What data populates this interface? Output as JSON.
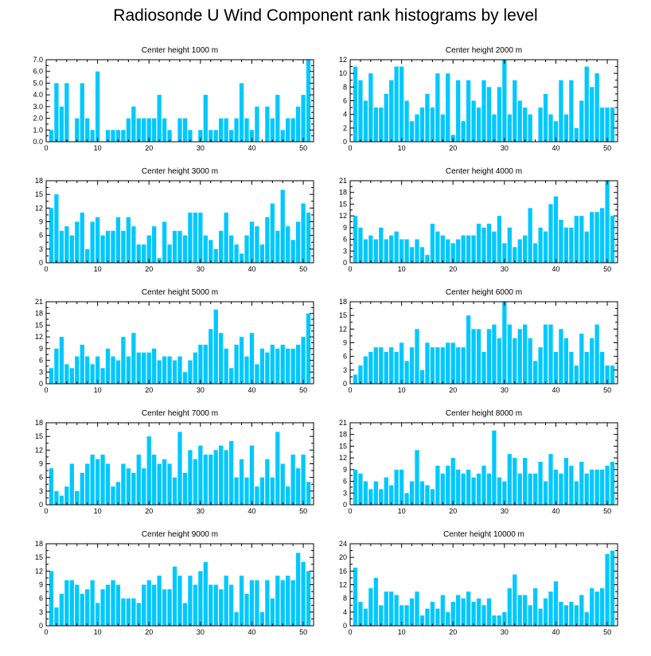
{
  "title": "Radiosonde U Wind Component rank histograms by level",
  "colors": {
    "bar": "#00c8ff",
    "axis": "#000000"
  },
  "chart_data": [
    {
      "type": "bar",
      "title": "Center height 1000 m",
      "xlabel": "",
      "ylabel": "",
      "xlim": [
        0,
        52
      ],
      "xticks": [
        0,
        10,
        20,
        30,
        40,
        50
      ],
      "ylim": [
        0,
        7
      ],
      "yticks": [
        0,
        1,
        2,
        3,
        4,
        5,
        6,
        7
      ],
      "ytick_labels": [
        "0.0",
        "1.0",
        "2.0",
        "3.0",
        "4.0",
        "5.0",
        "6.0",
        "7.0"
      ],
      "x": [
        1,
        2,
        3,
        4,
        5,
        6,
        7,
        8,
        9,
        10,
        11,
        12,
        13,
        14,
        15,
        16,
        17,
        18,
        19,
        20,
        21,
        22,
        23,
        24,
        25,
        26,
        27,
        28,
        29,
        30,
        31,
        32,
        33,
        34,
        35,
        36,
        37,
        38,
        39,
        40,
        41,
        42,
        43,
        44,
        45,
        46,
        47,
        48,
        49,
        50,
        51
      ],
      "values": [
        1,
        5,
        3,
        5,
        0,
        2,
        5,
        2,
        1,
        6,
        0,
        1,
        1,
        1,
        1,
        2,
        3,
        2,
        2,
        2,
        2,
        4,
        2,
        1,
        0,
        2,
        2,
        1,
        0,
        1,
        4,
        1,
        1,
        2,
        2,
        1,
        2,
        5,
        2,
        1,
        3,
        0,
        3,
        2,
        4,
        1,
        2,
        2,
        3,
        4,
        7
      ]
    },
    {
      "type": "bar",
      "title": "Center height 2000 m",
      "xlabel": "",
      "ylabel": "",
      "xlim": [
        0,
        52
      ],
      "xticks": [
        0,
        10,
        20,
        30,
        40,
        50
      ],
      "ylim": [
        0,
        12
      ],
      "yticks": [
        0,
        2,
        4,
        6,
        8,
        10,
        12
      ],
      "ytick_labels": [
        "0",
        "2",
        "4",
        "6",
        "8",
        "10",
        "12"
      ],
      "x": [
        1,
        2,
        3,
        4,
        5,
        6,
        7,
        8,
        9,
        10,
        11,
        12,
        13,
        14,
        15,
        16,
        17,
        18,
        19,
        20,
        21,
        22,
        23,
        24,
        25,
        26,
        27,
        28,
        29,
        30,
        31,
        32,
        33,
        34,
        35,
        36,
        37,
        38,
        39,
        40,
        41,
        42,
        43,
        44,
        45,
        46,
        47,
        48,
        49,
        50,
        51
      ],
      "values": [
        11,
        9,
        6,
        10,
        5,
        5,
        7,
        9,
        11,
        11,
        6,
        3,
        4,
        5,
        7,
        5,
        10,
        4,
        10,
        1,
        9,
        3,
        9,
        6,
        5,
        9,
        8,
        4,
        8,
        12,
        4,
        9,
        6,
        5,
        4,
        0,
        5,
        7,
        4,
        3,
        9,
        4,
        9,
        2,
        6,
        11,
        8,
        10,
        5,
        5,
        5
      ]
    },
    {
      "type": "bar",
      "title": "Center height 3000 m",
      "xlabel": "",
      "ylabel": "",
      "xlim": [
        0,
        52
      ],
      "xticks": [
        0,
        10,
        20,
        30,
        40,
        50
      ],
      "ylim": [
        0,
        18
      ],
      "yticks": [
        0,
        3,
        6,
        9,
        12,
        15,
        18
      ],
      "ytick_labels": [
        "0",
        "3",
        "6",
        "9",
        "12",
        "15",
        "18"
      ],
      "x": [
        1,
        2,
        3,
        4,
        5,
        6,
        7,
        8,
        9,
        10,
        11,
        12,
        13,
        14,
        15,
        16,
        17,
        18,
        19,
        20,
        21,
        22,
        23,
        24,
        25,
        26,
        27,
        28,
        29,
        30,
        31,
        32,
        33,
        34,
        35,
        36,
        37,
        38,
        39,
        40,
        41,
        42,
        43,
        44,
        45,
        46,
        47,
        48,
        49,
        50,
        51
      ],
      "values": [
        12,
        15,
        7,
        8,
        6,
        9,
        11,
        3,
        9,
        10,
        6,
        7,
        7,
        10,
        7,
        10,
        8,
        4,
        4,
        6,
        8,
        1,
        9,
        4,
        7,
        7,
        6,
        11,
        11,
        11,
        6,
        5,
        3,
        7,
        11,
        6,
        4,
        2,
        6,
        9,
        8,
        4,
        10,
        13,
        7,
        16,
        8,
        5,
        9,
        13,
        11
      ]
    },
    {
      "type": "bar",
      "title": "Center height 4000 m",
      "xlabel": "",
      "ylabel": "",
      "xlim": [
        0,
        52
      ],
      "xticks": [
        0,
        10,
        20,
        30,
        40,
        50
      ],
      "ylim": [
        0,
        21
      ],
      "yticks": [
        0,
        3,
        6,
        9,
        12,
        15,
        18,
        21
      ],
      "ytick_labels": [
        "0",
        "3",
        "6",
        "9",
        "12",
        "15",
        "18",
        "21"
      ],
      "x": [
        1,
        2,
        3,
        4,
        5,
        6,
        7,
        8,
        9,
        10,
        11,
        12,
        13,
        14,
        15,
        16,
        17,
        18,
        19,
        20,
        21,
        22,
        23,
        24,
        25,
        26,
        27,
        28,
        29,
        30,
        31,
        32,
        33,
        34,
        35,
        36,
        37,
        38,
        39,
        40,
        41,
        42,
        43,
        44,
        45,
        46,
        47,
        48,
        49,
        50,
        51
      ],
      "values": [
        12,
        9,
        6,
        7,
        6,
        9,
        6,
        7,
        8,
        6,
        6,
        4,
        6,
        4,
        2,
        10,
        8,
        7,
        6,
        5,
        6,
        7,
        7,
        7,
        10,
        9,
        10,
        8,
        12,
        5,
        9,
        4,
        6,
        7,
        14,
        5,
        9,
        8,
        15,
        17,
        11,
        9,
        9,
        12,
        12,
        8,
        13,
        13,
        14,
        21,
        12
      ]
    },
    {
      "type": "bar",
      "title": "Center height 5000 m",
      "xlabel": "",
      "ylabel": "",
      "xlim": [
        0,
        52
      ],
      "xticks": [
        0,
        10,
        20,
        30,
        40,
        50
      ],
      "ylim": [
        0,
        21
      ],
      "yticks": [
        0,
        3,
        6,
        9,
        12,
        15,
        18,
        21
      ],
      "ytick_labels": [
        "0",
        "3",
        "6",
        "9",
        "12",
        "15",
        "18",
        "21"
      ],
      "x": [
        1,
        2,
        3,
        4,
        5,
        6,
        7,
        8,
        9,
        10,
        11,
        12,
        13,
        14,
        15,
        16,
        17,
        18,
        19,
        20,
        21,
        22,
        23,
        24,
        25,
        26,
        27,
        28,
        29,
        30,
        31,
        32,
        33,
        34,
        35,
        36,
        37,
        38,
        39,
        40,
        41,
        42,
        43,
        44,
        45,
        46,
        47,
        48,
        49,
        50,
        51
      ],
      "values": [
        4,
        9,
        12,
        5,
        4,
        7,
        10,
        7,
        5,
        7,
        4,
        9,
        7,
        6,
        12,
        7,
        13,
        8,
        8,
        8,
        9,
        6,
        7,
        7,
        6,
        7,
        3,
        6,
        8,
        10,
        10,
        14,
        19,
        13,
        9,
        4,
        10,
        12,
        7,
        13,
        5,
        9,
        8,
        10,
        9,
        10,
        9,
        9,
        10,
        12,
        18
      ]
    },
    {
      "type": "bar",
      "title": "Center height 6000 m",
      "xlabel": "",
      "ylabel": "",
      "xlim": [
        0,
        52
      ],
      "xticks": [
        0,
        10,
        20,
        30,
        40,
        50
      ],
      "ylim": [
        0,
        18
      ],
      "yticks": [
        0,
        3,
        6,
        9,
        12,
        15,
        18
      ],
      "ytick_labels": [
        "0",
        "3",
        "6",
        "9",
        "12",
        "15",
        "18"
      ],
      "x": [
        1,
        2,
        3,
        4,
        5,
        6,
        7,
        8,
        9,
        10,
        11,
        12,
        13,
        14,
        15,
        16,
        17,
        18,
        19,
        20,
        21,
        22,
        23,
        24,
        25,
        26,
        27,
        28,
        29,
        30,
        31,
        32,
        33,
        34,
        35,
        36,
        37,
        38,
        39,
        40,
        41,
        42,
        43,
        44,
        45,
        46,
        47,
        48,
        49,
        50,
        51
      ],
      "values": [
        2,
        4,
        6,
        7,
        8,
        8,
        7,
        8,
        7,
        9,
        5,
        8,
        12,
        3,
        9,
        8,
        8,
        8,
        9,
        9,
        8,
        8,
        15,
        12,
        12,
        7,
        12,
        13,
        10,
        18,
        13,
        10,
        12,
        13,
        10,
        5,
        8,
        13,
        13,
        7,
        12,
        10,
        7,
        4,
        11,
        7,
        10,
        13,
        7,
        4,
        4
      ]
    },
    {
      "type": "bar",
      "title": "Center height 7000 m",
      "xlabel": "",
      "ylabel": "",
      "xlim": [
        0,
        52
      ],
      "xticks": [
        0,
        10,
        20,
        30,
        40,
        50
      ],
      "ylim": [
        0,
        18
      ],
      "yticks": [
        0,
        3,
        6,
        9,
        12,
        15,
        18
      ],
      "ytick_labels": [
        "0",
        "3",
        "6",
        "9",
        "12",
        "15",
        "18"
      ],
      "x": [
        1,
        2,
        3,
        4,
        5,
        6,
        7,
        8,
        9,
        10,
        11,
        12,
        13,
        14,
        15,
        16,
        17,
        18,
        19,
        20,
        21,
        22,
        23,
        24,
        25,
        26,
        27,
        28,
        29,
        30,
        31,
        32,
        33,
        34,
        35,
        36,
        37,
        38,
        39,
        40,
        41,
        42,
        43,
        44,
        45,
        46,
        47,
        48,
        49,
        50,
        51
      ],
      "values": [
        8,
        3,
        2,
        4,
        9,
        3,
        7,
        9,
        11,
        10,
        11,
        9,
        4,
        5,
        9,
        8,
        7,
        11,
        8,
        15,
        11,
        9,
        10,
        9,
        6,
        16,
        7,
        12,
        10,
        13,
        11,
        11,
        12,
        13,
        12,
        14,
        6,
        10,
        6,
        13,
        4,
        6,
        10,
        6,
        16,
        9,
        4,
        11,
        8,
        11,
        5
      ]
    },
    {
      "type": "bar",
      "title": "Center height 8000 m",
      "xlabel": "",
      "ylabel": "",
      "xlim": [
        0,
        52
      ],
      "xticks": [
        0,
        10,
        20,
        30,
        40,
        50
      ],
      "ylim": [
        0,
        21
      ],
      "yticks": [
        0,
        3,
        6,
        9,
        12,
        15,
        18,
        21
      ],
      "ytick_labels": [
        "0",
        "3",
        "6",
        "9",
        "12",
        "15",
        "18",
        "21"
      ],
      "x": [
        1,
        2,
        3,
        4,
        5,
        6,
        7,
        8,
        9,
        10,
        11,
        12,
        13,
        14,
        15,
        16,
        17,
        18,
        19,
        20,
        21,
        22,
        23,
        24,
        25,
        26,
        27,
        28,
        29,
        30,
        31,
        32,
        33,
        34,
        35,
        36,
        37,
        38,
        39,
        40,
        41,
        42,
        43,
        44,
        45,
        46,
        47,
        48,
        49,
        50,
        51
      ],
      "values": [
        9,
        8,
        6,
        4,
        6,
        4,
        7,
        5,
        9,
        9,
        3,
        6,
        14,
        6,
        5,
        4,
        10,
        8,
        10,
        12,
        9,
        8,
        9,
        7,
        8,
        10,
        8,
        19,
        7,
        6,
        13,
        12,
        8,
        12,
        8,
        8,
        11,
        6,
        13,
        9,
        8,
        12,
        10,
        6,
        11,
        8,
        9,
        9,
        9,
        10,
        11
      ]
    },
    {
      "type": "bar",
      "title": "Center height 9000 m",
      "xlabel": "",
      "ylabel": "",
      "xlim": [
        0,
        52
      ],
      "xticks": [
        0,
        10,
        20,
        30,
        40,
        50
      ],
      "ylim": [
        0,
        18
      ],
      "yticks": [
        0,
        3,
        6,
        9,
        12,
        15,
        18
      ],
      "ytick_labels": [
        "0",
        "3",
        "6",
        "9",
        "12",
        "15",
        "18"
      ],
      "x": [
        1,
        2,
        3,
        4,
        5,
        6,
        7,
        8,
        9,
        10,
        11,
        12,
        13,
        14,
        15,
        16,
        17,
        18,
        19,
        20,
        21,
        22,
        23,
        24,
        25,
        26,
        27,
        28,
        29,
        30,
        31,
        32,
        33,
        34,
        35,
        36,
        37,
        38,
        39,
        40,
        41,
        42,
        43,
        44,
        45,
        46,
        47,
        48,
        49,
        50,
        51
      ],
      "values": [
        12,
        4,
        7,
        10,
        10,
        9,
        7,
        8,
        10,
        5,
        8,
        9,
        10,
        9,
        6,
        6,
        6,
        5,
        9,
        10,
        9,
        11,
        8,
        8,
        13,
        11,
        5,
        11,
        9,
        12,
        14,
        9,
        9,
        8,
        11,
        9,
        3,
        11,
        7,
        10,
        10,
        3,
        10,
        6,
        11,
        10,
        11,
        10,
        16,
        14,
        12
      ]
    },
    {
      "type": "bar",
      "title": "Center height 10000 m",
      "xlabel": "",
      "ylabel": "",
      "xlim": [
        0,
        52
      ],
      "xticks": [
        0,
        10,
        20,
        30,
        40,
        50
      ],
      "ylim": [
        0,
        24
      ],
      "yticks": [
        0,
        4,
        8,
        12,
        16,
        20,
        24
      ],
      "ytick_labels": [
        "0",
        "4",
        "8",
        "12",
        "16",
        "20",
        "24"
      ],
      "x": [
        1,
        2,
        3,
        4,
        5,
        6,
        7,
        8,
        9,
        10,
        11,
        12,
        13,
        14,
        15,
        16,
        17,
        18,
        19,
        20,
        21,
        22,
        23,
        24,
        25,
        26,
        27,
        28,
        29,
        30,
        31,
        32,
        33,
        34,
        35,
        36,
        37,
        38,
        39,
        40,
        41,
        42,
        43,
        44,
        45,
        46,
        47,
        48,
        49,
        50,
        51
      ],
      "values": [
        17,
        7,
        5,
        11,
        14,
        6,
        10,
        10,
        9,
        6,
        6,
        8,
        10,
        3,
        5,
        7,
        5,
        9,
        4,
        7,
        9,
        8,
        10,
        7,
        8,
        6,
        8,
        3,
        3,
        4,
        11,
        15,
        9,
        9,
        6,
        11,
        5,
        8,
        10,
        13,
        7,
        6,
        7,
        6,
        9,
        4,
        11,
        10,
        11,
        21,
        22
      ]
    }
  ]
}
